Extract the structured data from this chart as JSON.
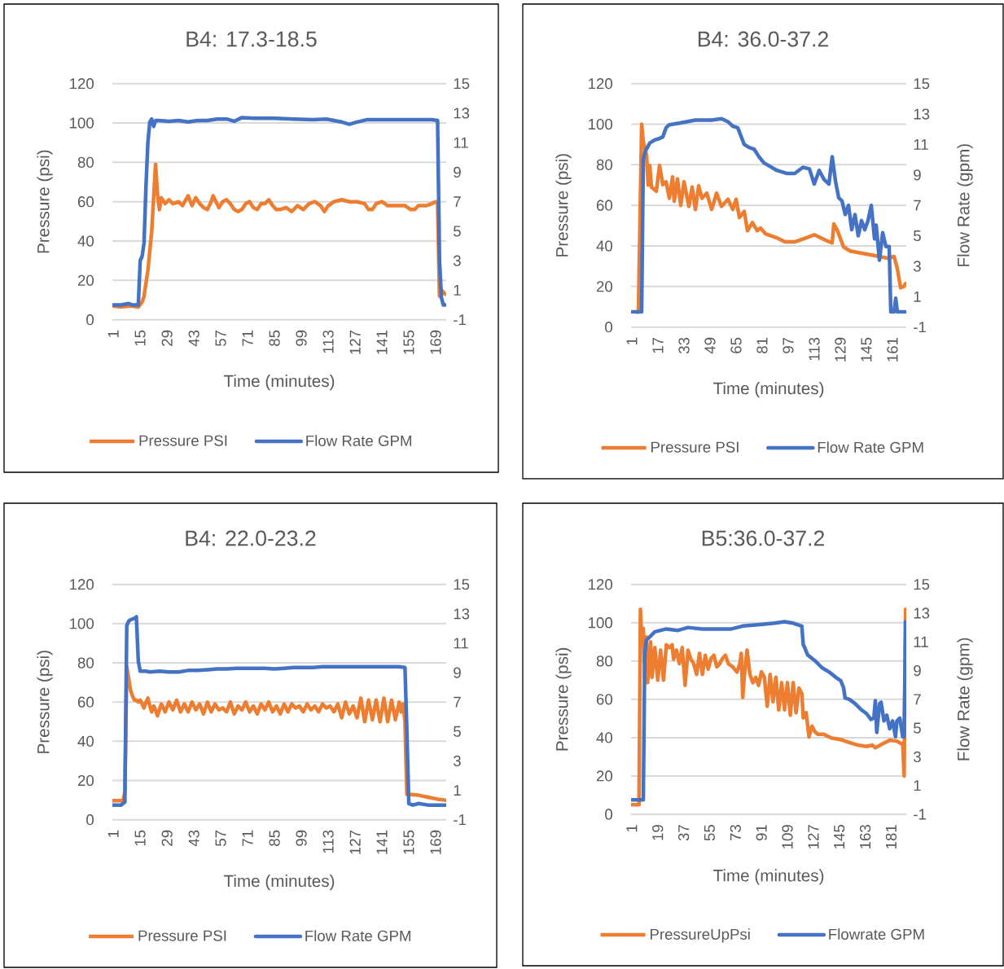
{
  "chart_data": [
    {
      "type": "line",
      "title": "B4: 17.3-18.5",
      "xlabel": "Time (minutes)",
      "ylabel": "Pressure (psi)",
      "xlim": [
        0.5,
        174.5
      ],
      "xticks": [
        1,
        15,
        29,
        43,
        57,
        71,
        85,
        99,
        113,
        127,
        141,
        155,
        169
      ],
      "ylim": [
        0,
        120
      ],
      "yticks": [
        0,
        20,
        40,
        60,
        80,
        100,
        120
      ],
      "y2lim": [
        -1,
        15
      ],
      "y2ticks": [
        -1,
        1,
        3,
        5,
        7,
        9,
        11,
        13,
        15
      ],
      "grid": "y",
      "legend": "bottom",
      "series": [
        {
          "name": "Pressure PSI",
          "color": "#ed7d31",
          "x": [
            1,
            5,
            10,
            14,
            16,
            17,
            19,
            21,
            22,
            23,
            24,
            25,
            26,
            28,
            30,
            32,
            35,
            37,
            40,
            42,
            44,
            46,
            48,
            50,
            52,
            53,
            55,
            56,
            58,
            60,
            62,
            64,
            66,
            68,
            70,
            72,
            74,
            76,
            78,
            80,
            82,
            84,
            86,
            88,
            91,
            94,
            97,
            100,
            103,
            106,
            109,
            111,
            113,
            116,
            120,
            124,
            128,
            132,
            134,
            136,
            138,
            141,
            144,
            147,
            150,
            153,
            156,
            158,
            160,
            164,
            167,
            169,
            170,
            171,
            172,
            174
          ],
          "values": [
            7,
            6.5,
            7,
            6.5,
            9,
            12,
            25,
            45,
            62,
            79,
            64,
            56,
            62,
            59,
            61,
            59,
            60,
            58,
            63,
            58,
            62,
            59,
            57,
            56,
            60,
            63,
            59,
            57,
            60,
            61,
            59,
            56,
            55,
            56,
            59,
            60,
            57,
            56,
            59,
            59,
            61,
            58,
            56,
            56,
            57,
            55,
            58,
            56,
            59,
            60,
            58,
            55,
            58,
            60,
            61,
            60,
            60,
            59,
            56,
            56,
            59,
            60,
            58,
            58,
            58,
            58,
            56,
            56,
            58,
            58,
            59,
            60,
            59,
            12,
            15,
            13
          ]
        },
        {
          "name": "Flow Rate GPM",
          "color": "#4472c4",
          "axis": "y2",
          "x": [
            1,
            5,
            9,
            11,
            14,
            15,
            16,
            17,
            18,
            19,
            20,
            21,
            22,
            23,
            25,
            30,
            35,
            40,
            45,
            50,
            55,
            60,
            64,
            68,
            75,
            85,
            95,
            105,
            112,
            120,
            124,
            128,
            133,
            140,
            150,
            160,
            167,
            170,
            171,
            172,
            173,
            174
          ],
          "values": [
            0,
            0,
            0.1,
            0,
            0,
            3,
            3.3,
            4.2,
            8,
            11,
            12.4,
            12.6,
            12.1,
            12.5,
            12.5,
            12.45,
            12.5,
            12.4,
            12.5,
            12.5,
            12.6,
            12.6,
            12.45,
            12.7,
            12.65,
            12.65,
            12.6,
            12.55,
            12.6,
            12.4,
            12.25,
            12.4,
            12.55,
            12.55,
            12.55,
            12.55,
            12.55,
            12.5,
            3,
            0.5,
            0,
            0
          ]
        }
      ]
    },
    {
      "type": "line",
      "title": "B4: 36.0-37.2",
      "xlabel": "Time (minutes)",
      "ylabel": "Pressure (psi)",
      "y2label": "Flow Rate (gpm)",
      "xlim": [
        0.5,
        169.5
      ],
      "xticks": [
        1,
        17,
        33,
        49,
        65,
        81,
        97,
        113,
        129,
        145,
        161
      ],
      "ylim": [
        0,
        120
      ],
      "yticks": [
        0,
        20,
        40,
        60,
        80,
        100,
        120
      ],
      "y2lim": [
        -1,
        15
      ],
      "y2ticks": [
        -1,
        1,
        3,
        5,
        7,
        9,
        11,
        13,
        15
      ],
      "grid": "y",
      "legend": "bottom",
      "series": [
        {
          "name": "Pressure PSI",
          "color": "#ed7d31",
          "x": [
            4,
            5,
            7,
            8,
            9,
            10,
            11,
            12,
            13,
            16,
            18,
            20,
            22,
            24,
            26,
            27,
            29,
            31,
            33,
            36,
            38,
            40,
            42,
            44,
            47,
            50,
            53,
            56,
            60,
            63,
            65,
            67,
            70,
            72,
            75,
            78,
            80,
            83,
            90,
            95,
            101,
            108,
            113,
            120,
            124,
            125,
            127,
            131,
            135,
            145,
            153,
            158,
            162,
            164,
            166,
            168,
            169
          ],
          "values": [
            7.4,
            7.4,
            100,
            91.6,
            87.6,
            85,
            70,
            79.6,
            69,
            67,
            79.6,
            70.2,
            71.6,
            63.5,
            74,
            62,
            73,
            60,
            71.6,
            59.5,
            69,
            58,
            69.6,
            63.5,
            66,
            58,
            66,
            59.5,
            63,
            58,
            63,
            54,
            57,
            47.5,
            51.5,
            47.5,
            48.8,
            46,
            44,
            42,
            42,
            44,
            45.5,
            42.8,
            41.5,
            50.8,
            48,
            39.5,
            37.5,
            36,
            34.8,
            34,
            34.8,
            28.8,
            19.4,
            20,
            21.4
          ]
        },
        {
          "name": "Flow Rate GPM",
          "color": "#4472c4",
          "axis": "y2",
          "x": [
            1,
            7,
            8,
            9,
            12,
            15,
            18,
            20,
            22,
            24,
            30,
            40,
            50,
            56,
            60,
            63,
            66,
            70,
            73,
            76,
            79,
            82,
            90,
            96,
            101,
            106,
            110,
            113,
            116,
            119,
            122,
            124,
            126,
            128,
            130,
            132,
            134,
            136,
            138,
            140,
            142,
            144,
            146,
            148,
            150,
            151,
            153,
            155,
            157,
            159,
            160,
            162,
            163,
            164,
            169
          ],
          "values": [
            0,
            0,
            10,
            10.5,
            11.1,
            11.3,
            11.4,
            11.5,
            12.1,
            12.3,
            12.4,
            12.6,
            12.6,
            12.7,
            12.5,
            12.2,
            12.1,
            11,
            10.8,
            10.7,
            10.2,
            9.8,
            9.3,
            9.1,
            9.1,
            9.5,
            9.4,
            8.4,
            9.3,
            8.7,
            8.4,
            10.2,
            8.6,
            7.5,
            7.3,
            6.4,
            7,
            5.4,
            6.4,
            5,
            6,
            5.4,
            6,
            7,
            4.8,
            5.7,
            3.4,
            5.2,
            4.3,
            4.3,
            0,
            0,
            0.9,
            0,
            0
          ]
        }
      ]
    },
    {
      "type": "line",
      "title": "B4: 22.0-23.2",
      "xlabel": "Time (minutes)",
      "ylabel": "Pressure (psi)",
      "xlim": [
        0.5,
        174.5
      ],
      "xticks": [
        1,
        15,
        29,
        43,
        57,
        71,
        85,
        99,
        113,
        127,
        141,
        155,
        169
      ],
      "ylim": [
        0,
        120
      ],
      "yticks": [
        0,
        20,
        40,
        60,
        80,
        100,
        120
      ],
      "y2lim": [
        -1,
        15
      ],
      "y2ticks": [
        -1,
        1,
        3,
        5,
        7,
        9,
        11,
        13,
        15
      ],
      "grid": "y",
      "legend": "bottom",
      "series": [
        {
          "name": "Pressure PSI",
          "color": "#ed7d31",
          "x": [
            1,
            5,
            6,
            7,
            8,
            9,
            10,
            11,
            12,
            13,
            14,
            15,
            16,
            17,
            18,
            19,
            20,
            21,
            22,
            23,
            24,
            26,
            28,
            30,
            32,
            34,
            36,
            38,
            40,
            42,
            44,
            46,
            48,
            50,
            52,
            54,
            56,
            58,
            60,
            62,
            64,
            66,
            68,
            70,
            72,
            74,
            76,
            78,
            80,
            82,
            84,
            86,
            88,
            90,
            92,
            94,
            96,
            98,
            100,
            102,
            104,
            106,
            108,
            110,
            112,
            114,
            116,
            118,
            120,
            122,
            124,
            126,
            128,
            130,
            132,
            134,
            136,
            138,
            140,
            142,
            144,
            146,
            148,
            150,
            151,
            152,
            153,
            154,
            155,
            160,
            165,
            170,
            174
          ],
          "values": [
            9.7,
            9.7,
            9.5,
            14,
            78,
            72,
            66,
            63,
            61,
            61,
            60,
            61,
            59,
            57,
            60,
            62,
            58,
            55,
            58,
            56,
            53,
            59,
            55,
            60,
            56,
            61,
            55,
            59,
            55,
            60,
            56,
            59,
            54,
            60,
            55,
            59,
            56,
            57,
            55,
            60,
            54,
            58,
            56,
            60,
            55,
            58,
            54,
            59,
            56,
            60,
            55,
            58,
            54,
            59,
            55,
            59,
            57,
            58,
            55,
            59,
            56,
            58,
            55,
            59,
            57,
            58,
            55,
            59,
            52,
            60,
            54,
            58,
            52,
            62,
            50,
            61,
            51,
            61,
            50,
            62,
            50,
            61,
            51,
            60,
            55,
            59,
            50,
            13,
            13,
            12.5,
            11.5,
            10.5,
            10
          ]
        },
        {
          "name": "Flow Rate GPM",
          "color": "#4472c4",
          "axis": "y2",
          "x": [
            1,
            5,
            7,
            8,
            9,
            10,
            12,
            13,
            14,
            15,
            18,
            20,
            25,
            30,
            35,
            40,
            45,
            50,
            55,
            60,
            65,
            70,
            75,
            80,
            85,
            90,
            95,
            100,
            105,
            110,
            115,
            120,
            125,
            130,
            135,
            140,
            145,
            150,
            153,
            154,
            155,
            157,
            160,
            165,
            170,
            174
          ],
          "values": [
            0,
            0,
            0.2,
            12.2,
            12.5,
            12.6,
            12.7,
            12.8,
            9.8,
            9.1,
            9.1,
            9.05,
            9.1,
            9.05,
            9.05,
            9.15,
            9.15,
            9.2,
            9.25,
            9.25,
            9.3,
            9.3,
            9.3,
            9.3,
            9.25,
            9.3,
            9.35,
            9.35,
            9.35,
            9.4,
            9.4,
            9.4,
            9.4,
            9.4,
            9.4,
            9.4,
            9.4,
            9.4,
            9.35,
            5,
            0.1,
            0,
            0.1,
            0,
            0,
            0
          ]
        }
      ]
    },
    {
      "type": "line",
      "title": "B5:36.0-37.2",
      "xlabel": "Time (minutes)",
      "ylabel": "Pressure (psi)",
      "y2label": "Flow Rate (gpm)",
      "xlim": [
        0.5,
        191.5
      ],
      "xticks": [
        1,
        19,
        37,
        55,
        73,
        91,
        109,
        127,
        145,
        163,
        181
      ],
      "ylim": [
        0,
        120
      ],
      "yticks": [
        0,
        20,
        40,
        60,
        80,
        100,
        120
      ],
      "y2lim": [
        -1,
        15
      ],
      "y2ticks": [
        -1,
        1,
        3,
        5,
        7,
        9,
        11,
        13,
        15
      ],
      "grid": "y",
      "legend": "bottom",
      "series": [
        {
          "name": "PressureUpPsi",
          "color": "#ed7d31",
          "x": [
            1,
            6,
            7,
            8,
            9,
            10,
            11,
            12,
            14,
            15,
            17,
            19,
            21,
            23,
            25,
            27,
            29,
            30,
            32,
            34,
            36,
            38,
            40,
            42,
            44,
            46,
            48,
            50,
            52,
            54,
            56,
            58,
            60,
            62,
            64,
            66,
            68,
            71,
            74,
            76,
            77,
            78,
            79,
            81,
            83,
            85,
            87,
            89,
            91,
            93,
            95,
            97,
            99,
            101,
            103,
            105,
            107,
            109,
            111,
            113,
            115,
            117,
            119,
            120,
            122,
            124,
            126,
            128,
            130,
            134,
            140,
            146,
            152,
            158,
            164,
            168,
            170,
            175,
            180,
            185,
            188,
            189,
            190,
            191
          ],
          "values": [
            5,
            5,
            107,
            90,
            97,
            71.5,
            92.6,
            68.7,
            90,
            71.5,
            87,
            70,
            85.7,
            70,
            88.5,
            87,
            88.5,
            81,
            85.7,
            78.6,
            87,
            67.3,
            85.7,
            81,
            78.6,
            73,
            84,
            73,
            83,
            75.8,
            81.4,
            83,
            77,
            78.6,
            81.4,
            83,
            78.6,
            77,
            74.2,
            78.6,
            84,
            61,
            71.5,
            85.7,
            73,
            68.7,
            71.5,
            67.3,
            74.4,
            71.5,
            56.4,
            73,
            58.8,
            71.5,
            54.5,
            68.7,
            54.5,
            68.7,
            51.7,
            68.7,
            53,
            65.9,
            63,
            50.3,
            53,
            40.4,
            46,
            43.2,
            41.8,
            41.8,
            39.7,
            39,
            37.5,
            36.1,
            35.4,
            36.1,
            34.7,
            36.8,
            38.7,
            38.2,
            36.8,
            37,
            20,
            107
          ]
        },
        {
          "name": "Flowrate GPM",
          "color": "#4472c4",
          "axis": "y2",
          "x": [
            1,
            9,
            10,
            11,
            13,
            17,
            25,
            33,
            40,
            50,
            60,
            70,
            78,
            90,
            100,
            107,
            113,
            119,
            120,
            121,
            123,
            128,
            133,
            138,
            143,
            146,
            148,
            149,
            152,
            156,
            160,
            164,
            167,
            169,
            170,
            171,
            173,
            174,
            176,
            178,
            180,
            182,
            184,
            185,
            187,
            189,
            190,
            191
          ],
          "values": [
            0,
            0,
            10.1,
            11.1,
            11.3,
            11.7,
            11.9,
            11.8,
            12,
            11.9,
            11.9,
            11.9,
            12.1,
            12.2,
            12.3,
            12.4,
            12.3,
            12.1,
            10.8,
            10.6,
            10.1,
            9.7,
            9.2,
            8.9,
            8.5,
            8.3,
            7.8,
            7.1,
            7,
            6.7,
            6.3,
            6,
            5.6,
            5.7,
            6.9,
            4.7,
            6.7,
            6.8,
            5.5,
            5.9,
            4.95,
            5.5,
            4.4,
            5.5,
            5.7,
            4.4,
            4.4,
            12.4
          ]
        }
      ]
    }
  ]
}
